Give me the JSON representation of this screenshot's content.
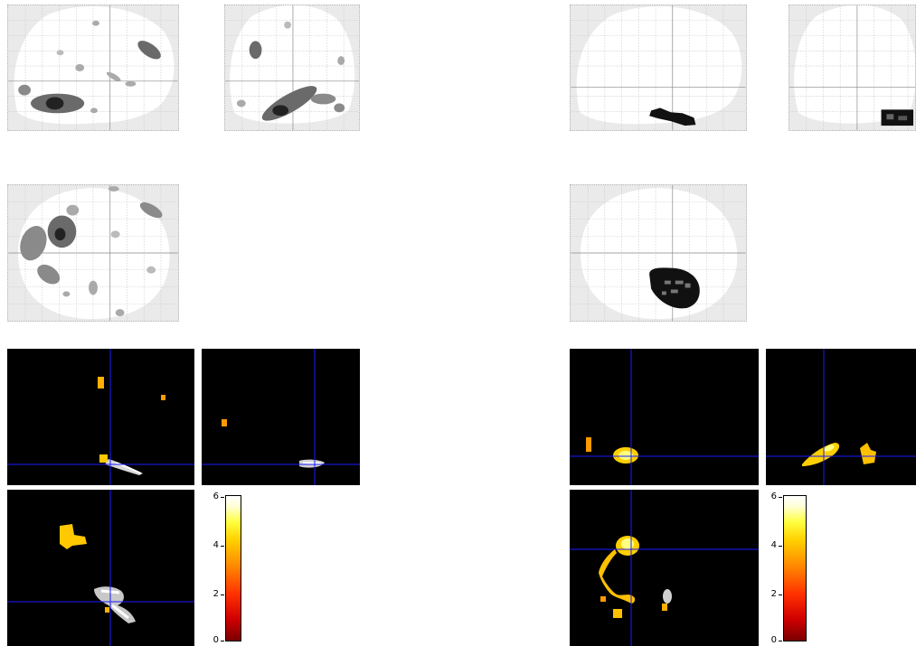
{
  "colorbar_left": {
    "ticks": [
      "6",
      "4",
      "2",
      "0"
    ],
    "range": [
      0,
      6.3
    ]
  },
  "colorbar_right": {
    "ticks": [
      "6",
      "4",
      "2",
      "0"
    ],
    "range": [
      0,
      6.3
    ]
  },
  "colors": {
    "background": "#ffffff",
    "glass_brain": "#eaeaea",
    "crosshair": "#1a1aff",
    "slice_bg": "#000000"
  }
}
